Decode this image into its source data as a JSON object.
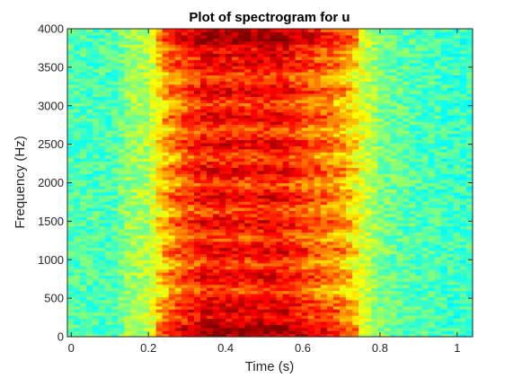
{
  "chart_data": {
    "type": "heatmap",
    "title": "Plot of spectrogram for u",
    "xlabel": "Time (s)",
    "ylabel": "Frequency (Hz)",
    "xlim": [
      -0.01,
      1.04
    ],
    "ylim": [
      0,
      4000
    ],
    "x_ticks": [
      0,
      0.2,
      0.4,
      0.6,
      0.8,
      1
    ],
    "x_tick_labels": [
      "0",
      "0.2",
      "0.4",
      "0.6",
      "0.8",
      "1"
    ],
    "y_ticks": [
      0,
      500,
      1000,
      1500,
      2000,
      2500,
      3000,
      3500,
      4000
    ],
    "y_tick_labels": [
      "0",
      "500",
      "1000",
      "1500",
      "2000",
      "2500",
      "3000",
      "3500",
      "4000"
    ],
    "colormap": "jet",
    "grid": false,
    "energy_profile": {
      "time": [
        0,
        0.05,
        0.1,
        0.15,
        0.2,
        0.25,
        0.3,
        0.35,
        0.4,
        0.45,
        0.5,
        0.55,
        0.6,
        0.65,
        0.7,
        0.75,
        0.8,
        0.85,
        0.9,
        0.95,
        1.0,
        1.04
      ],
      "relative_level": [
        0.45,
        0.45,
        0.44,
        0.52,
        0.55,
        0.72,
        0.8,
        0.86,
        0.85,
        0.84,
        0.86,
        0.85,
        0.8,
        0.76,
        0.72,
        0.6,
        0.5,
        0.47,
        0.45,
        0.44,
        0.43,
        0.43
      ]
    }
  }
}
